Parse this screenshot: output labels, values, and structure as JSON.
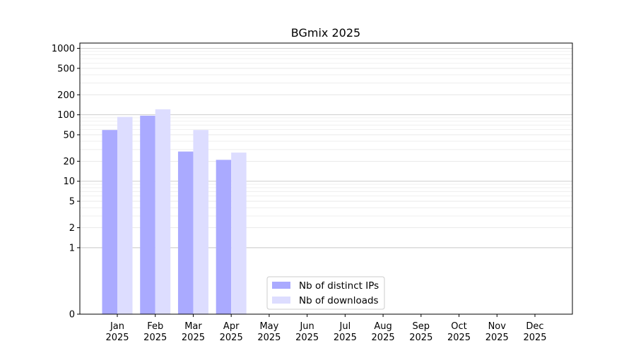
{
  "chart_data": {
    "type": "bar",
    "title": "BGmix 2025",
    "xlabel": "",
    "ylabel": "",
    "yscale": "symlog",
    "ylim": [
      0,
      1200
    ],
    "yticks": [
      {
        "value": 0,
        "label": "0"
      },
      {
        "value": 1,
        "label": "1"
      },
      {
        "value": 2,
        "label": "2"
      },
      {
        "value": 5,
        "label": "5"
      },
      {
        "value": 10,
        "label": "10"
      },
      {
        "value": 20,
        "label": "20"
      },
      {
        "value": 50,
        "label": "50"
      },
      {
        "value": 100,
        "label": "100"
      },
      {
        "value": 200,
        "label": "200"
      },
      {
        "value": 500,
        "label": "500"
      },
      {
        "value": 1000,
        "label": "1000"
      }
    ],
    "grid": true,
    "categories": [
      [
        "Jan",
        "2025"
      ],
      [
        "Feb",
        "2025"
      ],
      [
        "Mar",
        "2025"
      ],
      [
        "Apr",
        "2025"
      ],
      [
        "May",
        "2025"
      ],
      [
        "Jun",
        "2025"
      ],
      [
        "Jul",
        "2025"
      ],
      [
        "Aug",
        "2025"
      ],
      [
        "Sep",
        "2025"
      ],
      [
        "Oct",
        "2025"
      ],
      [
        "Nov",
        "2025"
      ],
      [
        "Dec",
        "2025"
      ]
    ],
    "series": [
      {
        "name": "Nb of distinct IPs",
        "color": "#aaaaff",
        "values": [
          59,
          97,
          28,
          21,
          null,
          null,
          null,
          null,
          null,
          null,
          null,
          null
        ]
      },
      {
        "name": "Nb of downloads",
        "color": "#ddddff",
        "values": [
          93,
          121,
          59,
          27,
          null,
          null,
          null,
          null,
          null,
          null,
          null,
          null
        ]
      }
    ],
    "legend": {
      "position": "lower-center"
    }
  }
}
